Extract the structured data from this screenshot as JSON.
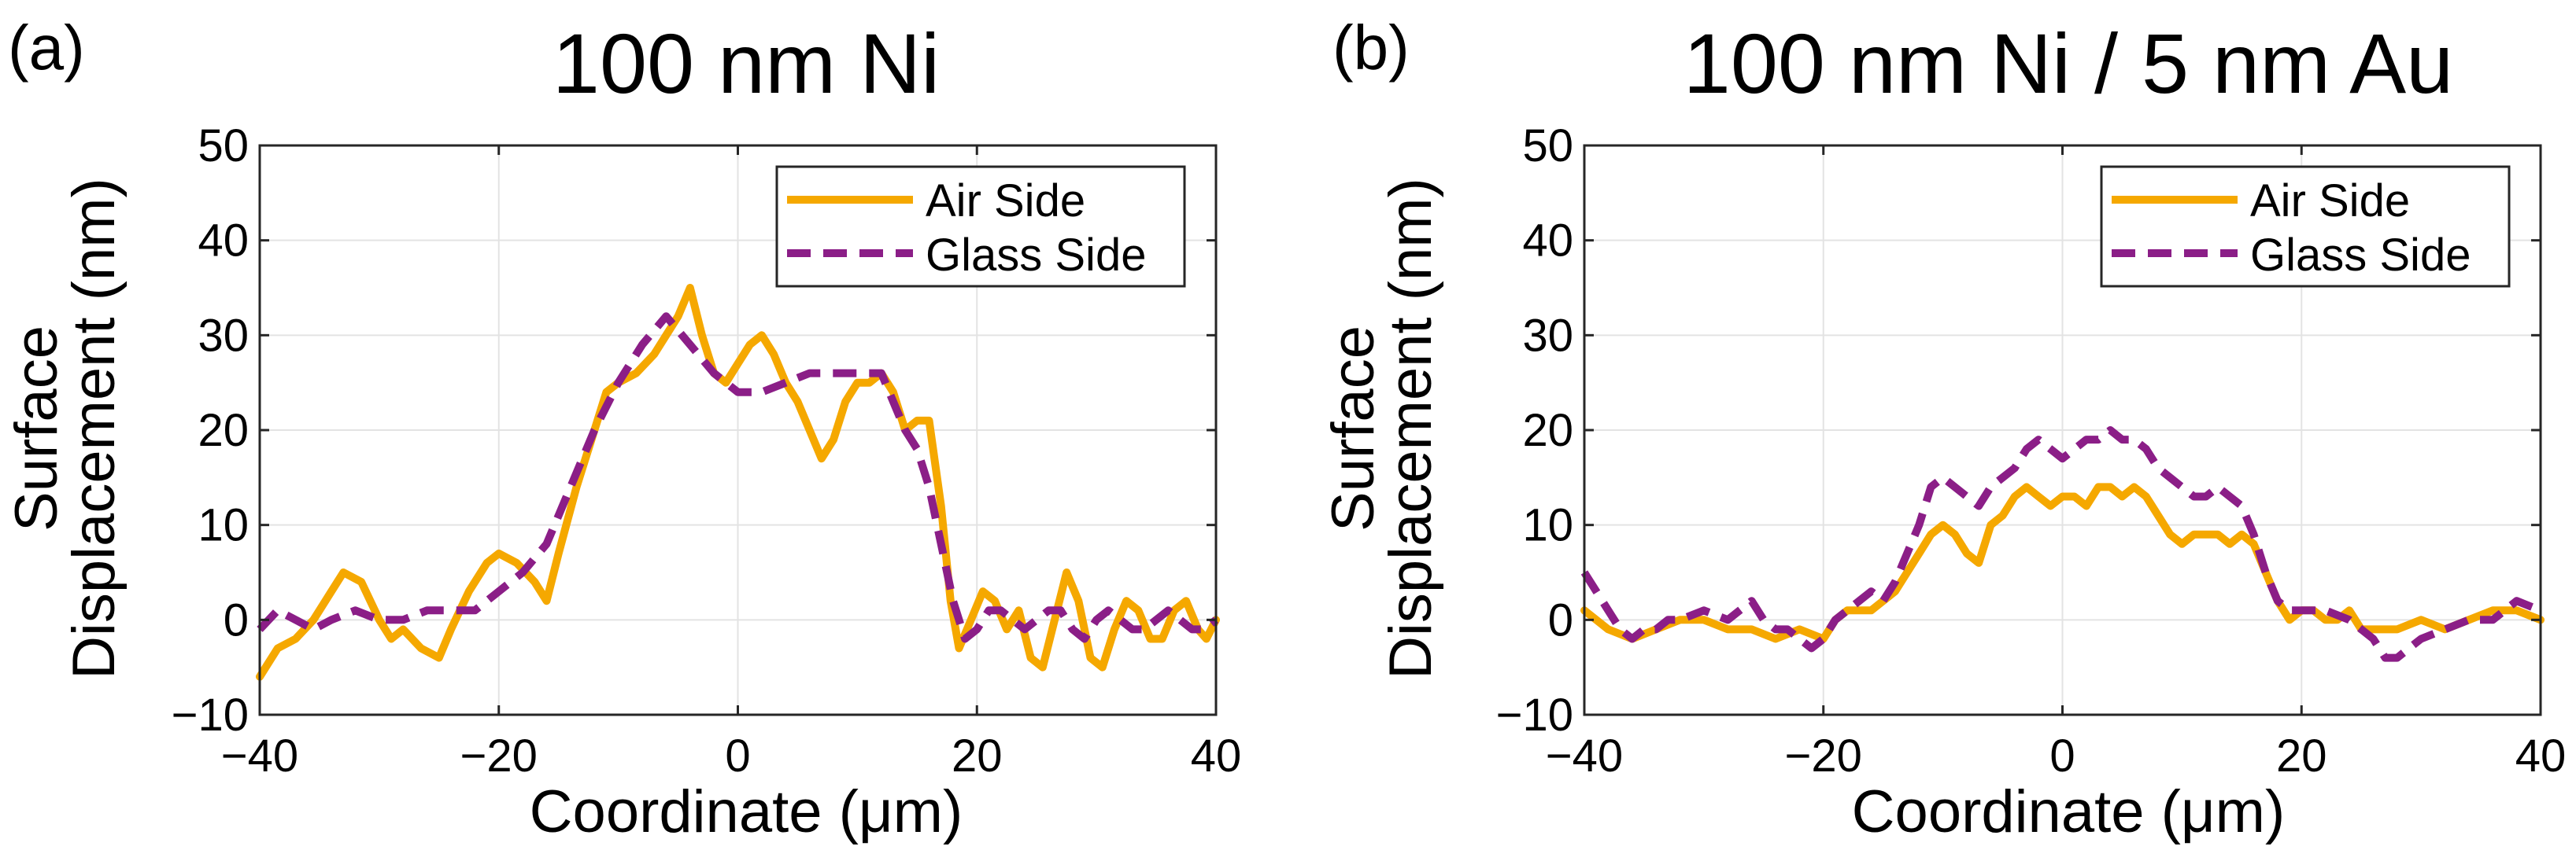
{
  "chart_data": [
    {
      "type": "line",
      "panel_label": "(a)",
      "title": "100 nm Ni",
      "xlabel": "Coordinate (μm)",
      "ylabel_line1": "Surface",
      "ylabel_line2": "Displacement (nm)",
      "xlim": [
        -40,
        40
      ],
      "ylim": [
        -10,
        50
      ],
      "xticks": [
        -40,
        -20,
        0,
        20,
        40
      ],
      "xtick_labels": [
        "−40",
        "−20",
        "0",
        "20",
        "40"
      ],
      "yticks": [
        -10,
        0,
        10,
        20,
        30,
        40,
        50
      ],
      "ytick_labels": [
        "−10",
        "0",
        "10",
        "20",
        "30",
        "40",
        "50"
      ],
      "grid": true,
      "legend_position": "top-right",
      "series": [
        {
          "name": "Air Side",
          "color": "#F5A800",
          "style": "solid",
          "points": [
            [
              -40,
              -6
            ],
            [
              -38.5,
              -3
            ],
            [
              -37,
              -2
            ],
            [
              -35.5,
              0
            ],
            [
              -34,
              3
            ],
            [
              -33,
              5
            ],
            [
              -31.5,
              4
            ],
            [
              -30,
              0
            ],
            [
              -29,
              -2
            ],
            [
              -28,
              -1
            ],
            [
              -26.5,
              -3
            ],
            [
              -25,
              -4
            ],
            [
              -24,
              -1
            ],
            [
              -22.5,
              3
            ],
            [
              -21,
              6
            ],
            [
              -20,
              7
            ],
            [
              -18.5,
              6
            ],
            [
              -17,
              4
            ],
            [
              -16,
              2
            ],
            [
              -15,
              7
            ],
            [
              -13.5,
              14
            ],
            [
              -12,
              20
            ],
            [
              -11,
              24
            ],
            [
              -10,
              25
            ],
            [
              -8.5,
              26
            ],
            [
              -7,
              28
            ],
            [
              -6,
              30
            ],
            [
              -5,
              32
            ],
            [
              -4,
              35
            ],
            [
              -3,
              30
            ],
            [
              -2,
              26
            ],
            [
              -1,
              25
            ],
            [
              0,
              27
            ],
            [
              1,
              29
            ],
            [
              2,
              30
            ],
            [
              3,
              28
            ],
            [
              4,
              25
            ],
            [
              5,
              23
            ],
            [
              6,
              20
            ],
            [
              7,
              17
            ],
            [
              8,
              19
            ],
            [
              9,
              23
            ],
            [
              10,
              25
            ],
            [
              11,
              25
            ],
            [
              12,
              26
            ],
            [
              13,
              24
            ],
            [
              14,
              20
            ],
            [
              15,
              21
            ],
            [
              16,
              21
            ],
            [
              17,
              12
            ],
            [
              17.8,
              2
            ],
            [
              18.5,
              -3
            ],
            [
              19.5,
              0
            ],
            [
              20.5,
              3
            ],
            [
              21.5,
              2
            ],
            [
              22.5,
              -1
            ],
            [
              23.5,
              1
            ],
            [
              24.5,
              -4
            ],
            [
              25.5,
              -5
            ],
            [
              26.5,
              0
            ],
            [
              27.5,
              5
            ],
            [
              28.5,
              2
            ],
            [
              29.5,
              -4
            ],
            [
              30.5,
              -5
            ],
            [
              31.5,
              -1
            ],
            [
              32.5,
              2
            ],
            [
              33.5,
              1
            ],
            [
              34.5,
              -2
            ],
            [
              35.5,
              -2
            ],
            [
              36.5,
              1
            ],
            [
              37.5,
              2
            ],
            [
              38.5,
              -1
            ],
            [
              39.2,
              -2
            ],
            [
              40,
              0
            ]
          ]
        },
        {
          "name": "Glass Side",
          "color": "#8B1E87",
          "style": "dashed",
          "points": [
            [
              -40,
              -1
            ],
            [
              -38.5,
              1
            ],
            [
              -37,
              0
            ],
            [
              -35.5,
              -1
            ],
            [
              -34,
              0
            ],
            [
              -32,
              1
            ],
            [
              -30,
              0
            ],
            [
              -28,
              0
            ],
            [
              -26,
              1
            ],
            [
              -24,
              1
            ],
            [
              -22,
              1
            ],
            [
              -20,
              3
            ],
            [
              -18,
              5
            ],
            [
              -16,
              8
            ],
            [
              -14,
              14
            ],
            [
              -12,
              20
            ],
            [
              -10,
              25
            ],
            [
              -8,
              29
            ],
            [
              -6,
              32
            ],
            [
              -4,
              29
            ],
            [
              -2,
              26
            ],
            [
              0,
              24
            ],
            [
              2,
              24
            ],
            [
              4,
              25
            ],
            [
              6,
              26
            ],
            [
              8,
              26
            ],
            [
              10,
              26
            ],
            [
              12,
              26
            ],
            [
              13,
              23
            ],
            [
              14,
              20
            ],
            [
              15,
              18
            ],
            [
              16,
              14
            ],
            [
              17,
              8
            ],
            [
              18,
              2
            ],
            [
              19,
              -2
            ],
            [
              20,
              -1
            ],
            [
              21,
              1
            ],
            [
              22,
              1
            ],
            [
              23,
              0
            ],
            [
              24,
              -1
            ],
            [
              25,
              0
            ],
            [
              26,
              1
            ],
            [
              27,
              1
            ],
            [
              28,
              -1
            ],
            [
              29,
              -2
            ],
            [
              30,
              0
            ],
            [
              31,
              1
            ],
            [
              32,
              0
            ],
            [
              33,
              -1
            ],
            [
              34,
              -1
            ],
            [
              35,
              0
            ],
            [
              36,
              1
            ],
            [
              37,
              0
            ],
            [
              38,
              -1
            ],
            [
              39,
              -1
            ],
            [
              40,
              0
            ]
          ]
        }
      ]
    },
    {
      "type": "line",
      "panel_label": "(b)",
      "title": "100 nm Ni / 5 nm Au",
      "xlabel": "Coordinate (μm)",
      "ylabel_line1": "Surface",
      "ylabel_line2": "Displacement (nm)",
      "xlim": [
        -40,
        40
      ],
      "ylim": [
        -10,
        50
      ],
      "xticks": [
        -40,
        -20,
        0,
        20,
        40
      ],
      "xtick_labels": [
        "−40",
        "−20",
        "0",
        "20",
        "40"
      ],
      "yticks": [
        -10,
        0,
        10,
        20,
        30,
        40,
        50
      ],
      "ytick_labels": [
        "−10",
        "0",
        "10",
        "20",
        "30",
        "40",
        "50"
      ],
      "grid": true,
      "legend_position": "top-right",
      "series": [
        {
          "name": "Air Side",
          "color": "#F5A800",
          "style": "solid",
          "points": [
            [
              -40,
              1
            ],
            [
              -38,
              -1
            ],
            [
              -36,
              -2
            ],
            [
              -34,
              -1
            ],
            [
              -32,
              0
            ],
            [
              -30,
              0
            ],
            [
              -28,
              -1
            ],
            [
              -26,
              -1
            ],
            [
              -24,
              -2
            ],
            [
              -22,
              -1
            ],
            [
              -20,
              -2
            ],
            [
              -19,
              0
            ],
            [
              -18,
              1
            ],
            [
              -16,
              1
            ],
            [
              -14,
              3
            ],
            [
              -13,
              5
            ],
            [
              -12,
              7
            ],
            [
              -11,
              9
            ],
            [
              -10,
              10
            ],
            [
              -9,
              9
            ],
            [
              -8,
              7
            ],
            [
              -7,
              6
            ],
            [
              -6,
              10
            ],
            [
              -5,
              11
            ],
            [
              -4,
              13
            ],
            [
              -3,
              14
            ],
            [
              -2,
              13
            ],
            [
              -1,
              12
            ],
            [
              0,
              13
            ],
            [
              1,
              13
            ],
            [
              2,
              12
            ],
            [
              3,
              14
            ],
            [
              4,
              14
            ],
            [
              5,
              13
            ],
            [
              6,
              14
            ],
            [
              7,
              13
            ],
            [
              8,
              11
            ],
            [
              9,
              9
            ],
            [
              10,
              8
            ],
            [
              11,
              9
            ],
            [
              12,
              9
            ],
            [
              13,
              9
            ],
            [
              14,
              8
            ],
            [
              15,
              9
            ],
            [
              16,
              8
            ],
            [
              17,
              5
            ],
            [
              18,
              2
            ],
            [
              19,
              0
            ],
            [
              20,
              1
            ],
            [
              21,
              1
            ],
            [
              22,
              0
            ],
            [
              23,
              0
            ],
            [
              24,
              1
            ],
            [
              25,
              -1
            ],
            [
              26,
              -1
            ],
            [
              28,
              -1
            ],
            [
              30,
              0
            ],
            [
              32,
              -1
            ],
            [
              34,
              0
            ],
            [
              36,
              1
            ],
            [
              38,
              1
            ],
            [
              40,
              0
            ]
          ]
        },
        {
          "name": "Glass Side",
          "color": "#8B1E87",
          "style": "dashed",
          "points": [
            [
              -40,
              5
            ],
            [
              -39,
              3
            ],
            [
              -38,
              1
            ],
            [
              -37,
              -1
            ],
            [
              -36,
              -2
            ],
            [
              -35,
              -1
            ],
            [
              -34,
              -1
            ],
            [
              -33,
              0
            ],
            [
              -32,
              0
            ],
            [
              -30,
              1
            ],
            [
              -28,
              0
            ],
            [
              -26,
              2
            ],
            [
              -25,
              0
            ],
            [
              -24,
              -1
            ],
            [
              -23,
              -1
            ],
            [
              -22,
              -2
            ],
            [
              -21,
              -3
            ],
            [
              -20,
              -2
            ],
            [
              -19,
              0
            ],
            [
              -18,
              1
            ],
            [
              -17,
              2
            ],
            [
              -16,
              3
            ],
            [
              -15,
              2
            ],
            [
              -14,
              4
            ],
            [
              -13,
              7
            ],
            [
              -12,
              10
            ],
            [
              -11,
              14
            ],
            [
              -10,
              15
            ],
            [
              -9,
              14
            ],
            [
              -8,
              13
            ],
            [
              -7,
              12
            ],
            [
              -6,
              14
            ],
            [
              -5,
              15
            ],
            [
              -4,
              16
            ],
            [
              -3,
              18
            ],
            [
              -2,
              19
            ],
            [
              -1,
              18
            ],
            [
              0,
              17
            ],
            [
              1,
              18
            ],
            [
              2,
              19
            ],
            [
              3,
              19
            ],
            [
              4,
              20
            ],
            [
              5,
              19
            ],
            [
              6,
              19
            ],
            [
              7,
              18
            ],
            [
              8,
              16
            ],
            [
              9,
              15
            ],
            [
              10,
              14
            ],
            [
              11,
              13
            ],
            [
              12,
              13
            ],
            [
              13,
              14
            ],
            [
              14,
              13
            ],
            [
              15,
              12
            ],
            [
              16,
              9
            ],
            [
              17,
              5
            ],
            [
              18,
              2
            ],
            [
              19,
              1
            ],
            [
              20,
              1
            ],
            [
              22,
              1
            ],
            [
              24,
              0
            ],
            [
              25,
              -1
            ],
            [
              26,
              -2
            ],
            [
              27,
              -4
            ],
            [
              28,
              -4
            ],
            [
              29,
              -3
            ],
            [
              30,
              -2
            ],
            [
              32,
              -1
            ],
            [
              34,
              0
            ],
            [
              36,
              0
            ],
            [
              38,
              2
            ],
            [
              40,
              1
            ]
          ]
        }
      ]
    }
  ]
}
